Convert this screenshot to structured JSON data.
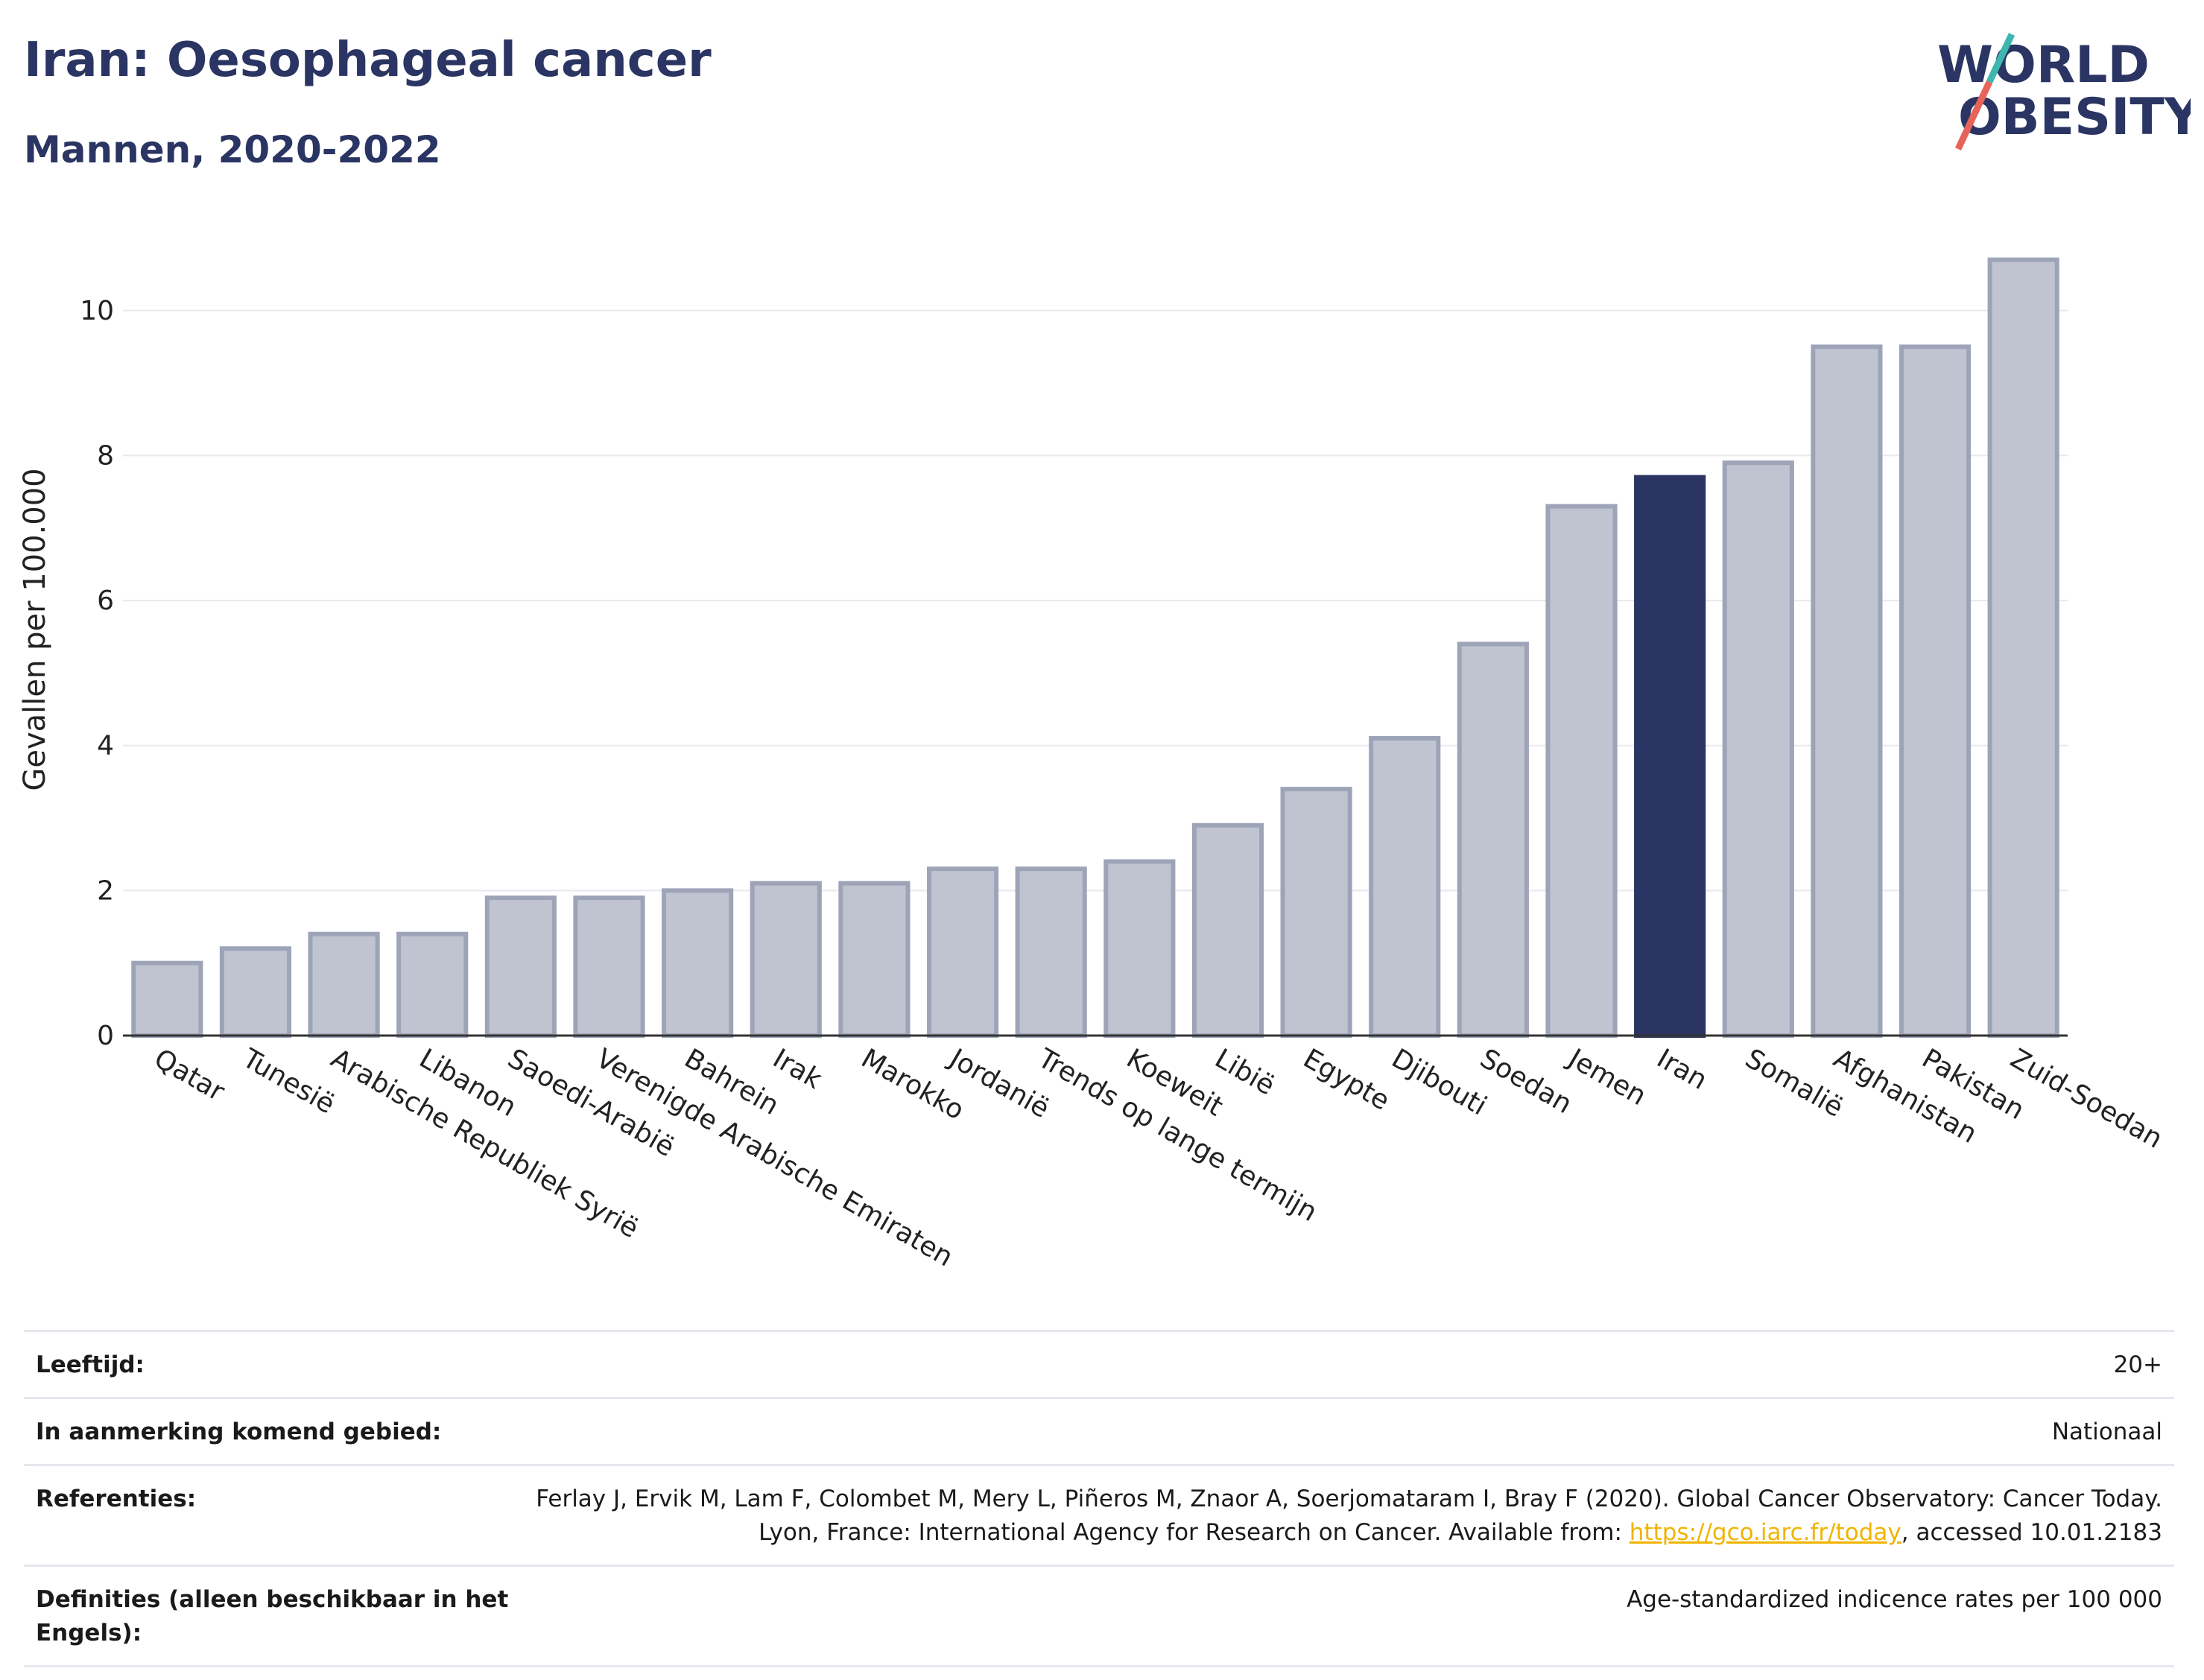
{
  "header": {
    "title": "Iran: Oesophageal cancer",
    "subtitle": "Mannen, 2020-2022"
  },
  "logo": {
    "line1": "WORLD",
    "line2": "OBESITY",
    "colors": {
      "text": "#2b3563",
      "slash_teal": "#3fb6b0",
      "slash_red": "#e8645a"
    }
  },
  "colors": {
    "bar_default_fill": "#c0c4d0",
    "bar_default_stroke": "#9ea4b8",
    "bar_highlight": "#2b3563",
    "grid": "#e8e8ee"
  },
  "chart_data": {
    "type": "bar",
    "title": "",
    "xlabel": "",
    "ylabel": "Gevallen per 100.000",
    "ylim": [
      0,
      11.2
    ],
    "yticks": [
      0,
      2,
      4,
      6,
      8,
      10
    ],
    "grid": true,
    "highlight": "Iran",
    "categories": [
      "Qatar",
      "Tunesië",
      "Arabische Republiek Syrië",
      "Libanon",
      "Saoedi-Arabië",
      "Verenigde Arabische Emiraten",
      "Bahrein",
      "Irak",
      "Marokko",
      "Jordanië",
      "Trends op lange termijn",
      "Koeweit",
      "Libië",
      "Egypte",
      "Djibouti",
      "Soedan",
      "Jemen",
      "Iran",
      "Somalië",
      "Afghanistan",
      "Pakistan",
      "Zuid-Soedan"
    ],
    "values": [
      1.0,
      1.2,
      1.4,
      1.4,
      1.9,
      1.9,
      2.0,
      2.1,
      2.1,
      2.3,
      2.3,
      2.4,
      2.9,
      3.4,
      4.1,
      5.4,
      7.3,
      7.7,
      7.9,
      9.5,
      9.5,
      10.7
    ]
  },
  "info_table": {
    "rows": [
      {
        "key": "Leeftijd:",
        "value": "20+"
      },
      {
        "key": "In aanmerking komend gebied:",
        "value": "Nationaal"
      },
      {
        "key": "Referenties:",
        "value_before": "Ferlay J, Ervik M, Lam F, Colombet M, Mery L, Piñeros M, Znaor A, Soerjomataram I, Bray F (2020). Global Cancer Observatory: Cancer Today. Lyon, France: International Agency for Research on Cancer. Available from: ",
        "link": "https://gco.iarc.fr/today",
        "value_after": ", accessed 10.01.2183"
      },
      {
        "key": "Definities (alleen beschikbaar in het Engels):",
        "value": "Age-standardized indicence rates per 100 000"
      }
    ]
  }
}
